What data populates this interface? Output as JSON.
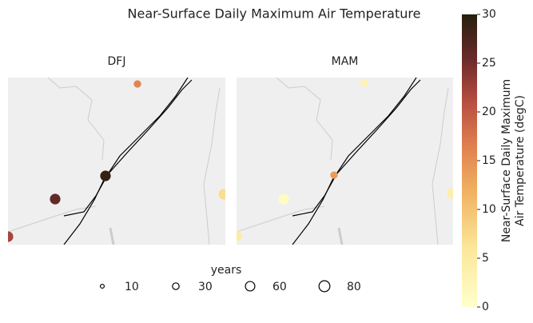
{
  "chart_data": {
    "type": "map-scatter",
    "title": "Near-Surface Daily Maximum Air Temperature",
    "colorbar": {
      "label": [
        "Near-Surface Daily Maximum",
        "Air Temperature (degC)"
      ],
      "lim": [
        0,
        30
      ],
      "ticks": [
        0,
        5,
        10,
        15,
        20,
        25,
        30
      ]
    },
    "size_legend": {
      "title": "years",
      "values": [
        10,
        30,
        60,
        80
      ]
    },
    "panels": [
      {
        "title": "DFJ",
        "points": [
          {
            "value": 16,
            "years": 30
          },
          {
            "value": 26,
            "years": 60
          },
          {
            "value": 29,
            "years": 60
          },
          {
            "value": 7,
            "years": 60
          },
          {
            "value": 22,
            "years": 60
          }
        ]
      },
      {
        "title": "MAM",
        "points": [
          {
            "value": 3,
            "years": 30
          },
          {
            "value": 1,
            "years": 60
          },
          {
            "value": 14,
            "years": 30
          },
          {
            "value": 4,
            "years": 60
          },
          {
            "value": 5,
            "years": 60
          }
        ]
      }
    ]
  }
}
